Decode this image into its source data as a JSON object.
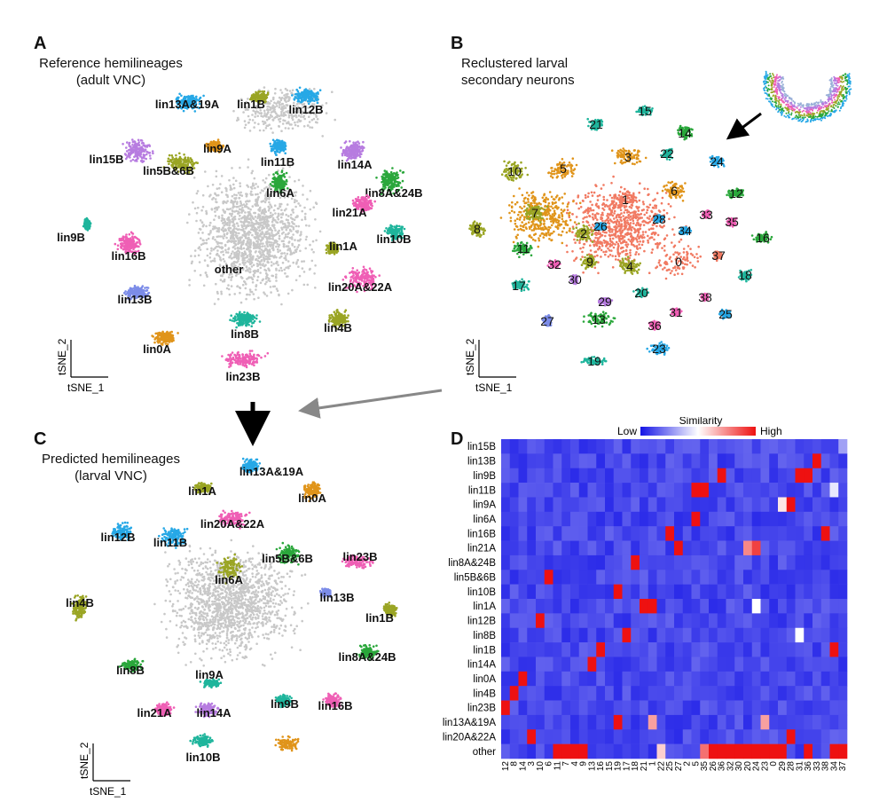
{
  "colors": {
    "gray": "#c8c8c8",
    "olive": "#9aa524",
    "orange": "#e0941a",
    "blue": "#27a8e6",
    "pink": "#ef5fb5",
    "violet": "#b77ce0",
    "green": "#2aa73b",
    "teal": "#1fb59c",
    "salmon": "#f17a62",
    "periwinkle": "#7c8ce8",
    "heat_low": "#1414e6",
    "heat_mid": "#ffffff",
    "heat_high": "#ee1111"
  },
  "panel_a": {
    "letter": "A",
    "caption_line1": "Reference hemilineages",
    "caption_line2": "(adult VNC)",
    "axis_y": "tSNE_2",
    "axis_x": "tSNE_1",
    "labels": [
      "lin13A&19A",
      "lin1B",
      "lin12B",
      "lin15B",
      "lin9A",
      "lin11B",
      "lin14A",
      "lin5B&6B",
      "lin6A",
      "lin8A&24B",
      "lin21A",
      "lin9B",
      "lin10B",
      "lin16B",
      "other",
      "lin1A",
      "lin20A&22A",
      "lin13B",
      "lin4B",
      "lin8B",
      "lin0A",
      "lin23B"
    ]
  },
  "panel_b": {
    "letter": "B",
    "caption_line1": "Reclustered larval",
    "caption_line2": "secondary neurons",
    "axis_y": "tSNE_2",
    "axis_x": "tSNE_1",
    "labels": [
      "15",
      "21",
      "14",
      "3",
      "22",
      "24",
      "10",
      "5",
      "6",
      "12",
      "1",
      "7",
      "28",
      "33",
      "35",
      "26",
      "2",
      "34",
      "8",
      "16",
      "11",
      "37",
      "9",
      "0",
      "4",
      "32",
      "18",
      "30",
      "17",
      "20",
      "29",
      "38",
      "13",
      "31",
      "36",
      "25",
      "27",
      "23",
      "19"
    ]
  },
  "panel_c": {
    "letter": "C",
    "caption_line1": "Predicted hemilineages",
    "caption_line2": "(larval VNC)",
    "axis_y": "tSNE_2",
    "axis_x": "tSNE_1",
    "labels": [
      "lin13A&19A",
      "lin1A",
      "lin0A",
      "lin20A&22A",
      "lin12B",
      "lin11B",
      "lin5B&6B",
      "lin23B",
      "lin6A",
      "lin13B",
      "lin4B",
      "lin1B",
      "lin8A&24B",
      "lin8B",
      "lin9A",
      "lin21A",
      "lin14A",
      "lin9B",
      "lin16B",
      "lin10B"
    ]
  },
  "chart_data": {
    "type": "heatmap",
    "panel_letter": "D",
    "legend_title": "Similarity",
    "legend_low": "Low",
    "legend_high": "High",
    "rows": [
      "lin15B",
      "lin13B",
      "lin9B",
      "lin11B",
      "lin9A",
      "lin6A",
      "lin16B",
      "lin21A",
      "lin8A&24B",
      "lin5B&6B",
      "lin10B",
      "lin1A",
      "lin12B",
      "lin8B",
      "lin1B",
      "lin14A",
      "lin0A",
      "lin4B",
      "lin23B",
      "lin13A&19A",
      "lin20A&22A",
      "other"
    ],
    "columns": [
      "12",
      "8",
      "14",
      "3",
      "10",
      "6",
      "11",
      "7",
      "4",
      "9",
      "13",
      "16",
      "15",
      "19",
      "17",
      "18",
      "21",
      "1",
      "22",
      "25",
      "27",
      "2",
      "5",
      "35",
      "26",
      "36",
      "32",
      "30",
      "20",
      "24",
      "23",
      "0",
      "29",
      "28",
      "31",
      "36",
      "33",
      "38",
      "34",
      "37"
    ],
    "high_cells": [
      {
        "row": "lin15B",
        "col": "37",
        "value": 0.3
      },
      {
        "row": "lin13B",
        "col": "33",
        "value": 1.0
      },
      {
        "row": "lin9B",
        "col": "31",
        "value": 1.0
      },
      {
        "row": "lin9B",
        "col": "36",
        "value": 1.0
      },
      {
        "row": "lin11B",
        "col": "5",
        "value": 1.0
      },
      {
        "row": "lin11B",
        "col": "35",
        "value": 1.0
      },
      {
        "row": "lin11B",
        "col": "34",
        "value": 0.45
      },
      {
        "row": "lin9A",
        "col": "28",
        "value": 1.0
      },
      {
        "row": "lin9A",
        "col": "29",
        "value": 0.55
      },
      {
        "row": "lin6A",
        "col": "5",
        "value": 1.0
      },
      {
        "row": "lin16B",
        "col": "25",
        "value": 1.0
      },
      {
        "row": "lin16B",
        "col": "38",
        "value": 1.0
      },
      {
        "row": "lin21A",
        "col": "27",
        "value": 1.0
      },
      {
        "row": "lin21A",
        "col": "20",
        "value": 0.75
      },
      {
        "row": "lin21A",
        "col": "24",
        "value": 0.9
      },
      {
        "row": "lin8A&24B",
        "col": "18",
        "value": 1.0
      },
      {
        "row": "lin5B&6B",
        "col": "6",
        "value": 1.0
      },
      {
        "row": "lin10B",
        "col": "19",
        "value": 1.0
      },
      {
        "row": "lin1A",
        "col": "21",
        "value": 1.0
      },
      {
        "row": "lin1A",
        "col": "1",
        "value": 1.0
      },
      {
        "row": "lin1A",
        "col": "24",
        "value": 0.5
      },
      {
        "row": "lin12B",
        "col": "10",
        "value": 1.0
      },
      {
        "row": "lin8B",
        "col": "17",
        "value": 1.0
      },
      {
        "row": "lin8B",
        "col": "31",
        "value": 0.5
      },
      {
        "row": "lin1B",
        "col": "16",
        "value": 1.0
      },
      {
        "row": "lin1B",
        "col": "34",
        "value": 1.0
      },
      {
        "row": "lin14A",
        "col": "13",
        "value": 1.0
      },
      {
        "row": "lin0A",
        "col": "14",
        "value": 1.0
      },
      {
        "row": "lin4B",
        "col": "8",
        "value": 1.0
      },
      {
        "row": "lin23B",
        "col": "12",
        "value": 1.0
      },
      {
        "row": "lin13A&19A",
        "col": "19",
        "value": 1.0
      },
      {
        "row": "lin13A&19A",
        "col": "1",
        "value": 0.7
      },
      {
        "row": "lin13A&19A",
        "col": "23",
        "value": 0.7
      },
      {
        "row": "lin20A&22A",
        "col": "3",
        "value": 1.0
      },
      {
        "row": "lin20A&22A",
        "col": "28",
        "value": 1.0
      },
      {
        "row": "other",
        "col": "11",
        "value": 1.0
      },
      {
        "row": "other",
        "col": "7",
        "value": 1.0
      },
      {
        "row": "other",
        "col": "4",
        "value": 1.0
      },
      {
        "row": "other",
        "col": "9",
        "value": 1.0
      },
      {
        "row": "other",
        "col": "26",
        "value": 1.0
      },
      {
        "row": "other",
        "col": "36",
        "value": 1.0
      },
      {
        "row": "other",
        "col": "32",
        "value": 1.0
      },
      {
        "row": "other",
        "col": "30",
        "value": 1.0
      },
      {
        "row": "other",
        "col": "20",
        "value": 1.0
      },
      {
        "row": "other",
        "col": "24",
        "value": 1.0
      },
      {
        "row": "other",
        "col": "23",
        "value": 1.0
      },
      {
        "row": "other",
        "col": "0",
        "value": 1.0
      },
      {
        "row": "other",
        "col": "29",
        "value": 1.0
      },
      {
        "row": "other",
        "col": "34",
        "value": 1.0
      },
      {
        "row": "other",
        "col": "37",
        "value": 1.0
      },
      {
        "row": "other",
        "col": "22",
        "value": 0.6
      },
      {
        "row": "other",
        "col": "35",
        "value": 0.8
      }
    ]
  }
}
